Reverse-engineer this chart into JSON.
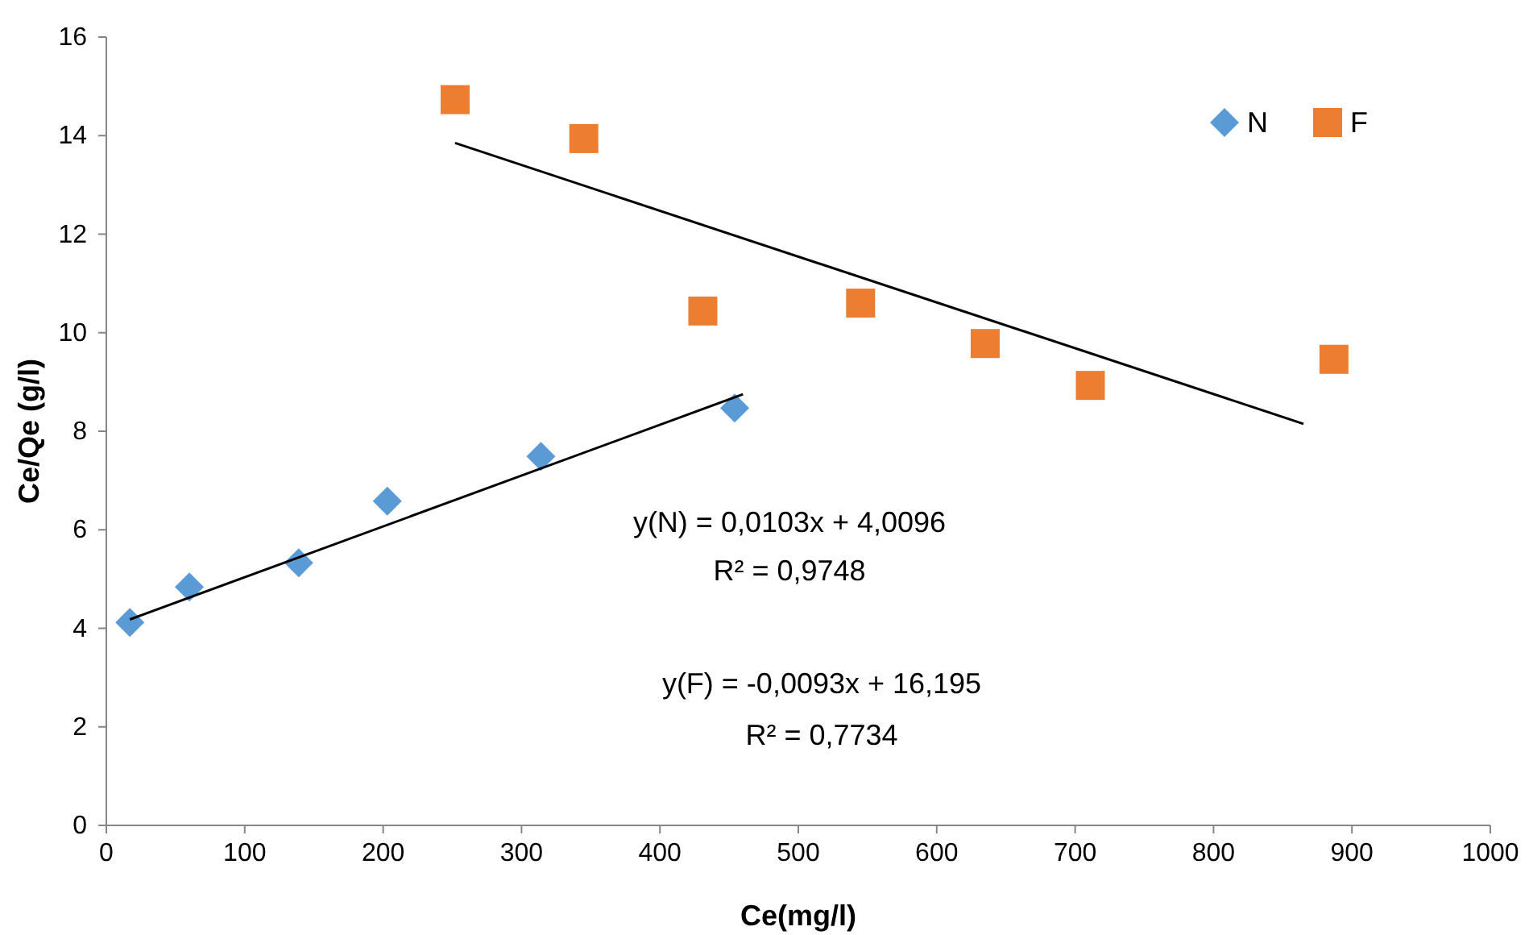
{
  "chart_data": {
    "type": "scatter",
    "xlabel": "Ce(mg/l)",
    "ylabel": "Ce/Qe (g/l)",
    "xlim": [
      0,
      1000
    ],
    "ylim": [
      0,
      16
    ],
    "xticks": [
      0,
      100,
      200,
      300,
      400,
      500,
      600,
      700,
      800,
      900,
      1000
    ],
    "yticks": [
      0,
      2,
      4,
      6,
      8,
      10,
      12,
      14,
      16
    ],
    "grid": false,
    "legend": "top right",
    "series": [
      {
        "name": "N",
        "color": "#5b9bd5",
        "marker": "diamond",
        "x": [
          17,
          60,
          139,
          203,
          314,
          454
        ],
        "values": [
          4.12,
          4.84,
          5.33,
          6.58,
          7.49,
          8.47
        ]
      },
      {
        "name": "F",
        "color": "#ed7d31",
        "marker": "square",
        "x": [
          252,
          345,
          431,
          545,
          635,
          711,
          887
        ],
        "values": [
          14.73,
          13.94,
          10.44,
          10.6,
          9.78,
          8.93,
          9.46
        ]
      },
      {
        "type": "line",
        "color": "#000000",
        "marker": "none",
        "x": [
          17,
          460
        ],
        "values": [
          4.18,
          8.75
        ]
      },
      {
        "type": "line",
        "color": "#000000",
        "marker": "none",
        "x": [
          252,
          865
        ],
        "values": [
          13.85,
          8.15
        ]
      }
    ],
    "annotations": [
      "y(N) = 0,0103x + 4,0096",
      "R² = 0,9748",
      "y(F) = -0,0093x + 16,195",
      "R² = 0,7734"
    ]
  }
}
